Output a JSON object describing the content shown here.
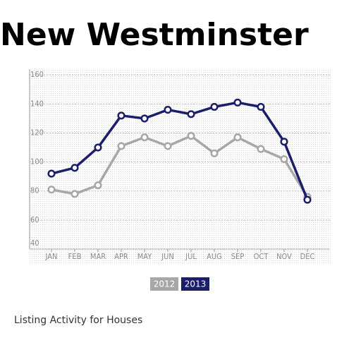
{
  "chart_data": {
    "type": "line",
    "title": "New Westminster",
    "subtitle": "Listing Activity for Houses",
    "categories": [
      "JAN",
      "FEB",
      "MAR",
      "APR",
      "MAY",
      "JUN",
      "JUL",
      "AUG",
      "SEP",
      "OCT",
      "NOV",
      "DEC"
    ],
    "series": [
      {
        "name": "2012",
        "color": "#a7a7a9",
        "values": [
          81,
          78,
          84,
          111,
          117,
          111,
          118,
          106,
          117,
          109,
          102,
          76
        ]
      },
      {
        "name": "2013",
        "color": "#1b1f6b",
        "values": [
          92,
          96,
          110,
          132,
          130,
          136,
          133,
          138,
          141,
          138,
          114,
          74
        ]
      }
    ],
    "ylim": [
      40,
      164
    ],
    "yticks": [
      40,
      60,
      80,
      100,
      120,
      140,
      160
    ],
    "grid": true
  }
}
